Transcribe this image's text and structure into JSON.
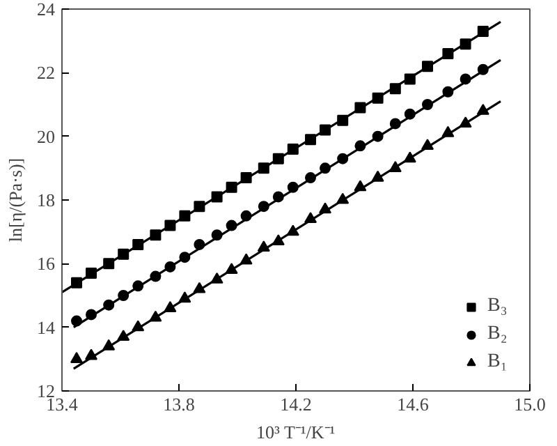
{
  "chart_data": {
    "type": "scatter",
    "xlabel": "10³ T⁻¹/K⁻¹",
    "ylabel": "ln[η/(Pa·s)]",
    "xlim": [
      13.4,
      15.0
    ],
    "ylim": [
      12,
      24
    ],
    "xticks": [
      13.4,
      13.8,
      14.2,
      14.6,
      {
        "value": 15.0,
        "label": "15.0"
      }
    ],
    "yticks": [
      12,
      14,
      16,
      18,
      20,
      22,
      24
    ],
    "grid": false,
    "legend": "bottom right",
    "x": [
      13.45,
      13.5,
      13.56,
      13.61,
      13.66,
      13.72,
      13.77,
      13.82,
      13.87,
      13.93,
      13.98,
      14.03,
      14.09,
      14.14,
      14.19,
      14.25,
      14.3,
      14.36,
      14.42,
      14.48,
      14.54,
      14.59,
      14.65,
      14.72,
      14.78,
      14.84
    ],
    "series": [
      {
        "name": "B₃",
        "color": "#000000",
        "marker": "square",
        "values": [
          15.4,
          15.7,
          16.0,
          16.3,
          16.6,
          16.9,
          17.2,
          17.5,
          17.8,
          18.1,
          18.4,
          18.7,
          19.0,
          19.3,
          19.6,
          19.9,
          20.2,
          20.5,
          20.9,
          21.2,
          21.5,
          21.8,
          22.2,
          22.6,
          22.9,
          23.3
        ]
      },
      {
        "name": "B₂",
        "color": "#000000",
        "marker": "circle",
        "values": [
          14.2,
          14.4,
          14.7,
          15.0,
          15.3,
          15.6,
          15.9,
          16.2,
          16.6,
          16.9,
          17.2,
          17.5,
          17.8,
          18.1,
          18.4,
          18.7,
          19.0,
          19.3,
          19.7,
          20.0,
          20.4,
          20.7,
          21.0,
          21.4,
          21.8,
          22.1
        ]
      },
      {
        "name": "B₁",
        "color": "#000000",
        "marker": "triangle",
        "values": [
          13.0,
          13.1,
          13.4,
          13.7,
          14.0,
          14.3,
          14.6,
          14.9,
          15.2,
          15.5,
          15.8,
          16.1,
          16.5,
          16.7,
          17.0,
          17.4,
          17.7,
          18.0,
          18.4,
          18.7,
          19.0,
          19.3,
          19.7,
          20.1,
          20.4,
          20.8
        ]
      },
      {
        "type": "line",
        "color": "#000000",
        "line_style": "solid",
        "x": [
          13.4,
          14.9
        ],
        "values": [
          15.1,
          23.6
        ]
      },
      {
        "type": "line",
        "color": "#000000",
        "line_style": "solid",
        "x": [
          13.44,
          14.9
        ],
        "values": [
          14.0,
          22.4
        ]
      },
      {
        "type": "line",
        "color": "#000000",
        "line_style": "solid",
        "x": [
          13.44,
          14.9
        ],
        "values": [
          12.7,
          21.1
        ]
      }
    ]
  }
}
